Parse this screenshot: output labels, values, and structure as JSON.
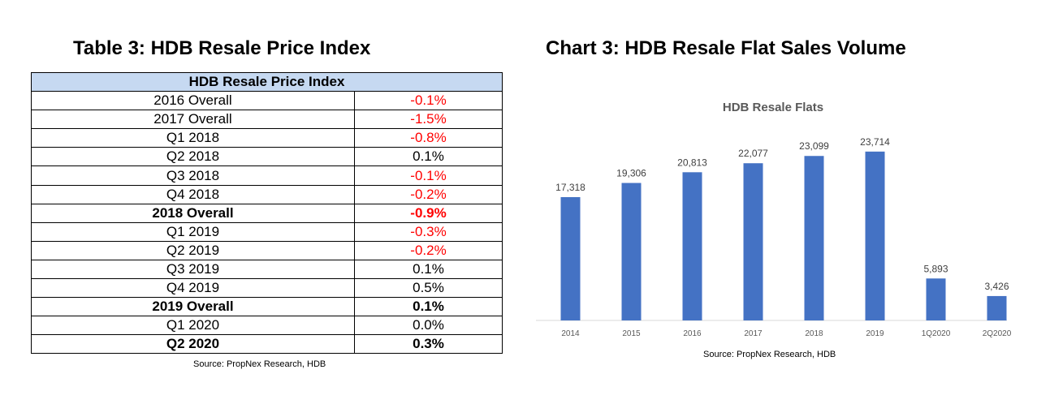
{
  "table": {
    "heading": "Table 3: HDB Resale Price Index",
    "header": "HDB Resale Price Index",
    "rows": [
      {
        "label": "2016 Overall",
        "value": "-0.1%",
        "negative": true,
        "bold": false
      },
      {
        "label": "2017 Overall",
        "value": "-1.5%",
        "negative": true,
        "bold": false
      },
      {
        "label": "Q1 2018",
        "value": "-0.8%",
        "negative": true,
        "bold": false
      },
      {
        "label": "Q2 2018",
        "value": "0.1%",
        "negative": false,
        "bold": false
      },
      {
        "label": "Q3 2018",
        "value": "-0.1%",
        "negative": true,
        "bold": false
      },
      {
        "label": "Q4 2018",
        "value": "-0.2%",
        "negative": true,
        "bold": false
      },
      {
        "label": "2018 Overall",
        "value": "-0.9%",
        "negative": true,
        "bold": true
      },
      {
        "label": "Q1 2019",
        "value": "-0.3%",
        "negative": true,
        "bold": false
      },
      {
        "label": "Q2 2019",
        "value": "-0.2%",
        "negative": true,
        "bold": false
      },
      {
        "label": "Q3 2019",
        "value": "0.1%",
        "negative": false,
        "bold": false
      },
      {
        "label": "Q4 2019",
        "value": "0.5%",
        "negative": false,
        "bold": false
      },
      {
        "label": "2019 Overall",
        "value": "0.1%",
        "negative": false,
        "bold": true
      },
      {
        "label": "Q1 2020",
        "value": "0.0%",
        "negative": false,
        "bold": false
      },
      {
        "label": "Q2 2020",
        "value": "0.3%",
        "negative": false,
        "bold": true
      }
    ],
    "source": "Source: PropNex Research, HDB",
    "header_color": "#c6d9f1",
    "negative_color": "#ff0000"
  },
  "chart": {
    "heading": "Chart 3: HDB Resale Flat Sales Volume",
    "source": "Source: PropNex Research, HDB"
  },
  "chart_data": {
    "type": "bar",
    "title": "HDB Resale Flats",
    "categories": [
      "2014",
      "2015",
      "2016",
      "2017",
      "2018",
      "2019",
      "1Q2020",
      "2Q2020"
    ],
    "values": [
      17318,
      19306,
      20813,
      22077,
      23099,
      23714,
      5893,
      3426
    ],
    "data_labels": [
      "17,318",
      "19,306",
      "20,813",
      "22,077",
      "23,099",
      "23,714",
      "5,893",
      "3,426"
    ],
    "xlabel": "",
    "ylabel": "",
    "ylim": [
      0,
      27000
    ],
    "grid": false,
    "bar_color": "#4472c4"
  }
}
